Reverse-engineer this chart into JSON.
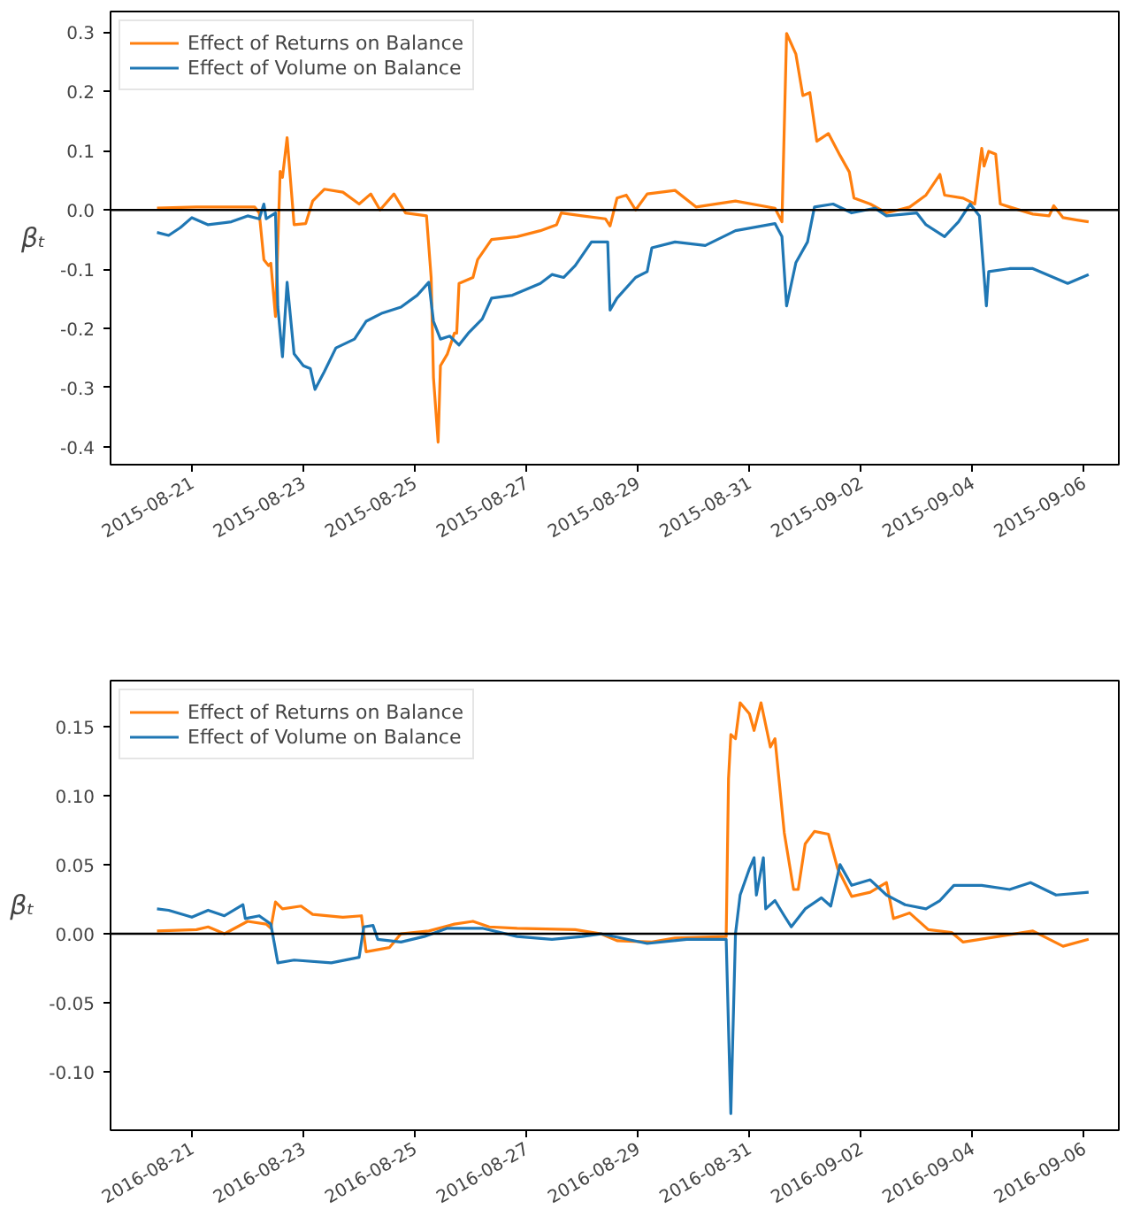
{
  "chart_data": [
    {
      "type": "line",
      "ylabel": "βₜ",
      "legend": "top left",
      "grid": false,
      "marker": "none",
      "line_style": "solid",
      "xlim": [
        "2015-08-19T13:00",
        "2015-09-06T15:00"
      ],
      "xticks": [
        "2015-08-21",
        "2015-08-23",
        "2015-08-25",
        "2015-08-27",
        "2015-08-29",
        "2015-08-31",
        "2015-09-02",
        "2015-09-04",
        "2015-09-06"
      ],
      "ylim": [
        -0.43,
        0.335
      ],
      "yticks": [
        {
          "value": -0.4,
          "label": "-0.4"
        },
        {
          "value": -0.3,
          "label": "-0.3"
        },
        {
          "value": -0.2,
          "label": "-0.2"
        },
        {
          "value": -0.1,
          "label": "-0.1"
        },
        {
          "value": 0.0,
          "label": "0.0"
        },
        {
          "value": 0.1,
          "label": "0.1"
        },
        {
          "value": 0.2,
          "label": "0.2"
        },
        {
          "value": 0.3,
          "label": "0.3"
        }
      ],
      "ref_lines": [
        {
          "axis": "y",
          "value": 0,
          "color": "#000000"
        }
      ],
      "series": [
        {
          "name": "Effect of Returns on Balance",
          "color": "#ff7f0e",
          "x": [
            "2015-08-20T09:00",
            "2015-08-21T02:00",
            "2015-08-22T03:00",
            "2015-08-22T05:00",
            "2015-08-22T07:00",
            "2015-08-22T09:00",
            "2015-08-22T10:00",
            "2015-08-22T12:00",
            "2015-08-22T14:00",
            "2015-08-22T15:00",
            "2015-08-22T17:00",
            "2015-08-22T20:00",
            "2015-08-23T01:00",
            "2015-08-23T04:00",
            "2015-08-23T09:00",
            "2015-08-23T17:00",
            "2015-08-24T00:00",
            "2015-08-24T05:00",
            "2015-08-24T09:00",
            "2015-08-24T15:00",
            "2015-08-24T20:00",
            "2015-08-25T05:00",
            "2015-08-25T07:00",
            "2015-08-25T08:00",
            "2015-08-25T10:00",
            "2015-08-25T11:00",
            "2015-08-25T14:00",
            "2015-08-25T17:00",
            "2015-08-25T18:00",
            "2015-08-25T19:00",
            "2015-08-26T01:00",
            "2015-08-26T03:00",
            "2015-08-26T09:00",
            "2015-08-26T20:00",
            "2015-08-27T06:00",
            "2015-08-27T13:00",
            "2015-08-27T15:00",
            "2015-08-28T00:00",
            "2015-08-28T10:00",
            "2015-08-28T12:00",
            "2015-08-28T15:00",
            "2015-08-28T19:00",
            "2015-08-28T23:00",
            "2015-08-29T04:00",
            "2015-08-29T16:00",
            "2015-08-30T01:00",
            "2015-08-30T18:00",
            "2015-08-31T11:00",
            "2015-08-31T14:00",
            "2015-08-31T16:00",
            "2015-08-31T20:00",
            "2015-08-31T23:00",
            "2015-09-01T02:00",
            "2015-09-01T05:00",
            "2015-09-01T10:00",
            "2015-09-01T15:00",
            "2015-09-01T19:00",
            "2015-09-01T21:00",
            "2015-09-02T04:00",
            "2015-09-02T11:00",
            "2015-09-02T21:00",
            "2015-09-03T04:00",
            "2015-09-03T10:00",
            "2015-09-03T12:00",
            "2015-09-03T20:00",
            "2015-09-04T01:00",
            "2015-09-04T04:00",
            "2015-09-04T05:00",
            "2015-09-04T07:00",
            "2015-09-04T10:00",
            "2015-09-04T12:00",
            "2015-09-04T16:00",
            "2015-09-05T02:00",
            "2015-09-05T09:00",
            "2015-09-05T11:00",
            "2015-09-05T15:00",
            "2015-09-05T21:00",
            "2015-09-06T02:00"
          ],
          "values": [
            0.003,
            0.005,
            0.005,
            -0.005,
            -0.084,
            -0.094,
            -0.09,
            -0.18,
            0.065,
            0.055,
            0.122,
            -0.025,
            -0.023,
            0.015,
            0.035,
            0.03,
            0.01,
            0.027,
            0.0,
            0.027,
            -0.005,
            -0.01,
            -0.114,
            -0.283,
            -0.392,
            -0.263,
            -0.243,
            -0.208,
            -0.208,
            -0.124,
            -0.114,
            -0.084,
            -0.05,
            -0.045,
            -0.035,
            -0.025,
            -0.005,
            -0.01,
            -0.015,
            -0.027,
            0.02,
            0.025,
            0.0,
            0.027,
            0.033,
            0.005,
            0.015,
            0.003,
            -0.02,
            0.298,
            0.263,
            0.193,
            0.198,
            0.116,
            0.129,
            0.092,
            0.064,
            0.02,
            0.01,
            -0.005,
            0.005,
            0.025,
            0.06,
            0.025,
            0.02,
            0.01,
            0.104,
            0.074,
            0.099,
            0.094,
            0.01,
            0.005,
            -0.007,
            -0.01,
            0.007,
            -0.013,
            -0.017,
            -0.02
          ]
        },
        {
          "name": "Effect of Volume on Balance",
          "color": "#1f77b4",
          "x": [
            "2015-08-20T09:00",
            "2015-08-20T14:00",
            "2015-08-20T19:00",
            "2015-08-21T00:00",
            "2015-08-21T07:00",
            "2015-08-21T17:00",
            "2015-08-22T00:00",
            "2015-08-22T05:00",
            "2015-08-22T07:00",
            "2015-08-22T08:00",
            "2015-08-22T12:00",
            "2015-08-22T13:00",
            "2015-08-22T15:00",
            "2015-08-22T17:00",
            "2015-08-22T20:00",
            "2015-08-23T00:00",
            "2015-08-23T03:00",
            "2015-08-23T05:00",
            "2015-08-23T09:00",
            "2015-08-23T14:00",
            "2015-08-23T22:00",
            "2015-08-24T03:00",
            "2015-08-24T10:00",
            "2015-08-24T18:00",
            "2015-08-25T01:00",
            "2015-08-25T06:00",
            "2015-08-25T08:00",
            "2015-08-25T11:00",
            "2015-08-25T15:00",
            "2015-08-25T19:00",
            "2015-08-25T23:00",
            "2015-08-26T05:00",
            "2015-08-26T09:00",
            "2015-08-26T18:00",
            "2015-08-27T06:00",
            "2015-08-27T11:00",
            "2015-08-27T16:00",
            "2015-08-27T21:00",
            "2015-08-28T04:00",
            "2015-08-28T11:00",
            "2015-08-28T12:00",
            "2015-08-28T15:00",
            "2015-08-28T23:00",
            "2015-08-29T04:00",
            "2015-08-29T06:00",
            "2015-08-29T16:00",
            "2015-08-30T05:00",
            "2015-08-30T18:00",
            "2015-08-31T11:00",
            "2015-08-31T14:00",
            "2015-08-31T16:00",
            "2015-08-31T20:00",
            "2015-09-01T01:00",
            "2015-09-01T04:00",
            "2015-09-01T12:00",
            "2015-09-01T20:00",
            "2015-09-02T06:00",
            "2015-09-02T11:00",
            "2015-09-03T00:00",
            "2015-09-03T04:00",
            "2015-09-03T12:00",
            "2015-09-03T18:00",
            "2015-09-03T23:00",
            "2015-09-04T03:00",
            "2015-09-04T06:00",
            "2015-09-04T07:00",
            "2015-09-04T16:00",
            "2015-09-05T02:00",
            "2015-09-05T17:00",
            "2015-09-06T02:00"
          ],
          "values": [
            -0.038,
            -0.043,
            -0.03,
            -0.013,
            -0.025,
            -0.02,
            -0.01,
            -0.015,
            0.01,
            -0.015,
            -0.005,
            -0.164,
            -0.248,
            -0.122,
            -0.243,
            -0.263,
            -0.268,
            -0.303,
            -0.273,
            -0.233,
            -0.218,
            -0.188,
            -0.174,
            -0.164,
            -0.144,
            -0.122,
            -0.188,
            -0.218,
            -0.213,
            -0.228,
            -0.208,
            -0.184,
            -0.149,
            -0.144,
            -0.124,
            -0.109,
            -0.114,
            -0.094,
            -0.054,
            -0.054,
            -0.169,
            -0.149,
            -0.114,
            -0.104,
            -0.064,
            -0.054,
            -0.06,
            -0.035,
            -0.023,
            -0.045,
            -0.162,
            -0.089,
            -0.054,
            0.005,
            0.01,
            -0.005,
            0.003,
            -0.01,
            -0.005,
            -0.025,
            -0.045,
            -0.02,
            0.01,
            -0.01,
            -0.162,
            -0.104,
            -0.099,
            -0.099,
            -0.124,
            -0.109
          ]
        }
      ]
    },
    {
      "type": "line",
      "ylabel": "βₜ",
      "legend": "top left",
      "grid": false,
      "marker": "none",
      "line_style": "solid",
      "xlim": [
        "2016-08-19T13:00",
        "2016-09-06T15:00"
      ],
      "xticks": [
        "2016-08-21",
        "2016-08-23",
        "2016-08-25",
        "2016-08-27",
        "2016-08-29",
        "2016-08-31",
        "2016-09-02",
        "2016-09-04",
        "2016-09-06"
      ],
      "ylim": [
        -0.142,
        0.183
      ],
      "yticks": [
        {
          "value": -0.1,
          "label": "-0.10"
        },
        {
          "value": -0.05,
          "label": "-0.05"
        },
        {
          "value": 0.0,
          "label": "0.00"
        },
        {
          "value": 0.05,
          "label": "0.05"
        },
        {
          "value": 0.1,
          "label": "0.10"
        },
        {
          "value": 0.15,
          "label": "0.15"
        }
      ],
      "ref_lines": [
        {
          "axis": "y",
          "value": 0,
          "color": "#000000"
        }
      ],
      "series": [
        {
          "name": "Effect of Returns on Balance",
          "color": "#ff7f0e",
          "x": [
            "2016-08-20T09:00",
            "2016-08-21T02:00",
            "2016-08-21T07:00",
            "2016-08-21T14:00",
            "2016-08-22T00:00",
            "2016-08-22T08:00",
            "2016-08-22T10:00",
            "2016-08-22T12:00",
            "2016-08-22T15:00",
            "2016-08-22T23:00",
            "2016-08-23T04:00",
            "2016-08-23T17:00",
            "2016-08-24T01:00",
            "2016-08-24T03:00",
            "2016-08-24T13:00",
            "2016-08-24T18:00",
            "2016-08-25T06:00",
            "2016-08-25T17:00",
            "2016-08-26T01:00",
            "2016-08-26T08:00",
            "2016-08-26T20:00",
            "2016-08-27T21:00",
            "2016-08-28T08:00",
            "2016-08-28T15:00",
            "2016-08-29T06:00",
            "2016-08-29T16:00",
            "2016-08-30T14:00",
            "2016-08-30T15:00",
            "2016-08-30T16:00",
            "2016-08-30T18:00",
            "2016-08-30T20:00",
            "2016-08-31T00:00",
            "2016-08-31T02:00",
            "2016-08-31T05:00",
            "2016-08-31T09:00",
            "2016-08-31T11:00",
            "2016-08-31T15:00",
            "2016-08-31T19:00",
            "2016-08-31T21:00",
            "2016-09-01T00:00",
            "2016-09-01T04:00",
            "2016-09-01T10:00",
            "2016-09-01T14:00",
            "2016-09-01T20:00",
            "2016-09-02T04:00",
            "2016-09-02T11:00",
            "2016-09-02T14:00",
            "2016-09-02T21:00",
            "2016-09-03T05:00",
            "2016-09-03T15:00",
            "2016-09-03T20:00",
            "2016-09-04T11:00",
            "2016-09-05T02:00",
            "2016-09-05T15:00",
            "2016-09-06T02:00"
          ],
          "values": [
            0.002,
            0.003,
            0.005,
            0.0,
            0.009,
            0.007,
            0.004,
            0.023,
            0.018,
            0.02,
            0.014,
            0.012,
            0.013,
            -0.013,
            -0.01,
            0.0,
            0.002,
            0.007,
            0.009,
            0.005,
            0.004,
            0.003,
            0.0,
            -0.005,
            -0.006,
            -0.003,
            -0.002,
            0.112,
            0.144,
            0.141,
            0.167,
            0.159,
            0.147,
            0.167,
            0.135,
            0.141,
            0.073,
            0.032,
            0.032,
            0.065,
            0.074,
            0.072,
            0.047,
            0.027,
            0.03,
            0.037,
            0.011,
            0.015,
            0.003,
            0.001,
            -0.006,
            -0.002,
            0.002,
            -0.009,
            -0.004
          ]
        },
        {
          "name": "Effect of Volume on Balance",
          "color": "#1f77b4",
          "x": [
            "2016-08-20T09:00",
            "2016-08-20T14:00",
            "2016-08-21T00:00",
            "2016-08-21T07:00",
            "2016-08-21T14:00",
            "2016-08-21T22:00",
            "2016-08-21T23:00",
            "2016-08-22T05:00",
            "2016-08-22T10:00",
            "2016-08-22T13:00",
            "2016-08-22T20:00",
            "2016-08-23T12:00",
            "2016-08-24T00:00",
            "2016-08-24T02:00",
            "2016-08-24T06:00",
            "2016-08-24T08:00",
            "2016-08-24T18:00",
            "2016-08-25T04:00",
            "2016-08-25T14:00",
            "2016-08-26T05:00",
            "2016-08-26T20:00",
            "2016-08-27T11:00",
            "2016-08-28T00:00",
            "2016-08-28T08:00",
            "2016-08-29T04:00",
            "2016-08-29T21:00",
            "2016-08-30T14:00",
            "2016-08-30T15:00",
            "2016-08-30T16:00",
            "2016-08-30T18:00",
            "2016-08-30T20:00",
            "2016-08-31T00:00",
            "2016-08-31T02:00",
            "2016-08-31T03:00",
            "2016-08-31T06:00",
            "2016-08-31T07:00",
            "2016-08-31T11:00",
            "2016-08-31T15:00",
            "2016-08-31T18:00",
            "2016-09-01T00:00",
            "2016-09-01T07:00",
            "2016-09-01T11:00",
            "2016-09-01T15:00",
            "2016-09-01T20:00",
            "2016-09-02T04:00",
            "2016-09-02T11:00",
            "2016-09-02T19:00",
            "2016-09-03T04:00",
            "2016-09-03T10:00",
            "2016-09-03T16:00",
            "2016-09-04T04:00",
            "2016-09-04T16:00",
            "2016-09-05T01:00",
            "2016-09-05T12:00",
            "2016-09-06T02:00"
          ],
          "values": [
            0.018,
            0.017,
            0.012,
            0.017,
            0.013,
            0.021,
            0.011,
            0.013,
            0.007,
            -0.021,
            -0.019,
            -0.021,
            -0.017,
            0.005,
            0.006,
            -0.004,
            -0.006,
            -0.002,
            0.004,
            0.004,
            -0.002,
            -0.004,
            -0.002,
            0.0,
            -0.007,
            -0.004,
            -0.004,
            -0.068,
            -0.13,
            0.0,
            0.028,
            0.047,
            0.055,
            0.028,
            0.055,
            0.018,
            0.024,
            0.013,
            0.005,
            0.018,
            0.026,
            0.02,
            0.05,
            0.035,
            0.039,
            0.028,
            0.021,
            0.018,
            0.024,
            0.035,
            0.035,
            0.032,
            0.037,
            0.028,
            0.03
          ]
        }
      ]
    }
  ]
}
